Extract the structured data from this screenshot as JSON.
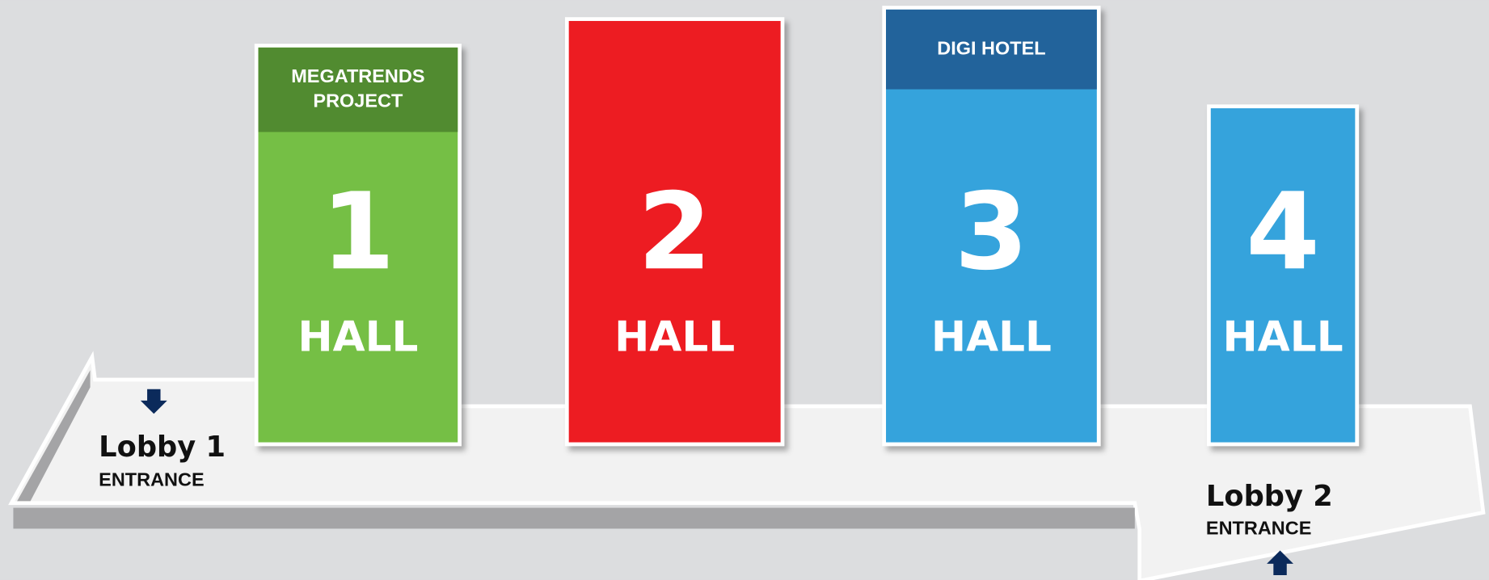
{
  "halls": [
    {
      "number": "1",
      "label": "HALL",
      "banner": [
        "MEGATRENDS",
        "PROJECT"
      ]
    },
    {
      "number": "2",
      "label": "HALL"
    },
    {
      "number": "3",
      "label": "HALL",
      "banner": [
        "DIGI HOTEL"
      ]
    },
    {
      "number": "4",
      "label": "HALL"
    }
  ],
  "lobbies": [
    {
      "name": "Lobby 1",
      "subtitle": "ENTRANCE"
    },
    {
      "name": "Lobby 2",
      "subtitle": "ENTRANCE"
    }
  ]
}
